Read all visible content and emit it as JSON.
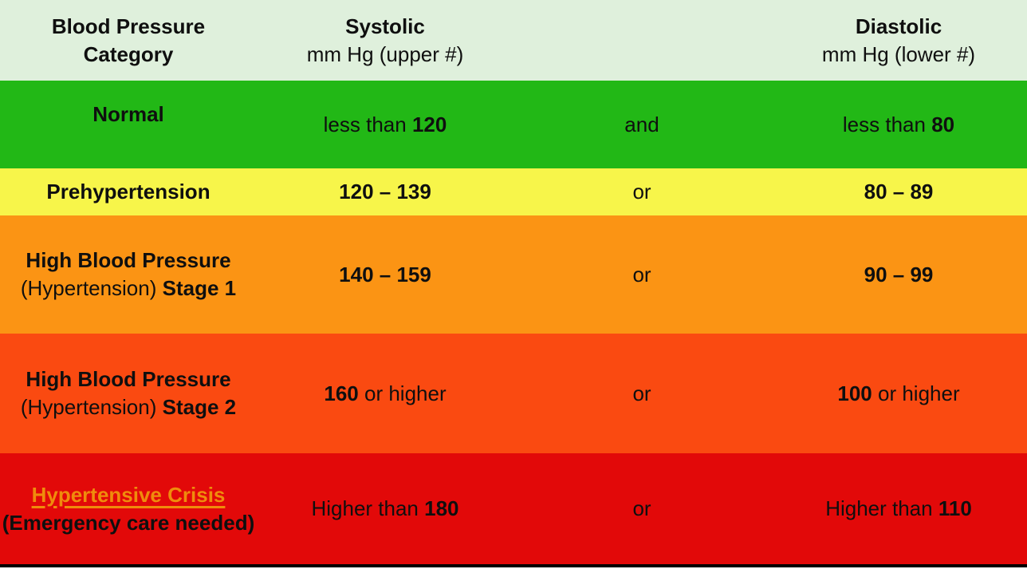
{
  "title": "Blood Pressure Categories Table",
  "colors": {
    "header_bg": "#dff0dc",
    "normal_bg": "#22b816",
    "prehypertension_bg": "#f7f54a",
    "stage1_bg": "#fb9414",
    "stage2_bg": "#fa4a11",
    "crisis_bg": "#e20909",
    "crisis_title_color": "#ef8c0c",
    "text_color": "#0f0f0f",
    "bottom_bar": "#000000"
  },
  "header": {
    "category": {
      "line1": "Blood Pressure",
      "line2": "Category"
    },
    "systolic": {
      "line1": "Systolic",
      "line2": "mm Hg (upper #)"
    },
    "diastolic": {
      "line1": "Diastolic",
      "line2": "mm Hg (lower #)"
    }
  },
  "rows": [
    {
      "id": "normal",
      "bg": "#22b816",
      "category_line1": [
        {
          "text": "Normal",
          "bold": true
        }
      ],
      "category_line2": [],
      "systolic": [
        {
          "text": "less than ",
          "bold": false
        },
        {
          "text": "120",
          "bold": true
        }
      ],
      "connector": "and",
      "diastolic": [
        {
          "text": "less than ",
          "bold": false
        },
        {
          "text": "80",
          "bold": true
        }
      ]
    },
    {
      "id": "prehypertension",
      "bg": "#f7f54a",
      "category_line1": [
        {
          "text": "Prehypertension",
          "bold": true
        }
      ],
      "category_line2": [],
      "systolic": [
        {
          "text": "120 – 139",
          "bold": true
        }
      ],
      "connector": "or",
      "diastolic": [
        {
          "text": "80 – 89",
          "bold": true
        }
      ]
    },
    {
      "id": "stage1",
      "bg": "#fb9414",
      "category_line1": [
        {
          "text": "High Blood Pressure",
          "bold": true
        }
      ],
      "category_line2": [
        {
          "text": "(Hypertension) ",
          "bold": false
        },
        {
          "text": "Stage 1",
          "bold": true
        }
      ],
      "systolic": [
        {
          "text": "140 – 159",
          "bold": true
        }
      ],
      "connector": "or",
      "diastolic": [
        {
          "text": "90 – 99",
          "bold": true
        }
      ]
    },
    {
      "id": "stage2",
      "bg": "#fa4a11",
      "category_line1": [
        {
          "text": "High Blood Pressure",
          "bold": true
        }
      ],
      "category_line2": [
        {
          "text": "(Hypertension) ",
          "bold": false
        },
        {
          "text": "Stage 2",
          "bold": true
        }
      ],
      "systolic": [
        {
          "text": "160",
          "bold": true
        },
        {
          "text": " or higher",
          "bold": false
        }
      ],
      "connector": "or",
      "diastolic": [
        {
          "text": "100",
          "bold": true
        },
        {
          "text": " or higher",
          "bold": false
        }
      ]
    },
    {
      "id": "crisis",
      "bg": "#e20909",
      "category_line1": [
        {
          "text": "Hypertensive Crisis",
          "bold": true,
          "underline": true,
          "color": "#ef8c0c"
        }
      ],
      "category_line2": [
        {
          "text": "(Emergency care needed)",
          "bold": true
        }
      ],
      "systolic": [
        {
          "text": "Higher than ",
          "bold": false
        },
        {
          "text": "180",
          "bold": true
        }
      ],
      "connector": "or",
      "diastolic": [
        {
          "text": "Higher than ",
          "bold": false
        },
        {
          "text": "110",
          "bold": true
        }
      ]
    }
  ],
  "chart_data": {
    "type": "table",
    "title": "Blood Pressure Categories",
    "columns": [
      "Blood Pressure Category",
      "Systolic mm Hg (upper #)",
      "",
      "Diastolic mm Hg (lower #)"
    ],
    "rows": [
      [
        "Normal",
        "less than 120",
        "and",
        "less than 80"
      ],
      [
        "Prehypertension",
        "120 – 139",
        "or",
        "80 – 89"
      ],
      [
        "High Blood Pressure (Hypertension) Stage 1",
        "140 – 159",
        "or",
        "90 – 99"
      ],
      [
        "High Blood Pressure (Hypertension) Stage 2",
        "160 or higher",
        "or",
        "100 or higher"
      ],
      [
        "Hypertensive Crisis (Emergency care needed)",
        "Higher than 180",
        "or",
        "Higher than 110"
      ]
    ],
    "row_colors": [
      "#22b816",
      "#f7f54a",
      "#fb9414",
      "#fa4a11",
      "#e20909"
    ],
    "header_color": "#dff0dc"
  }
}
